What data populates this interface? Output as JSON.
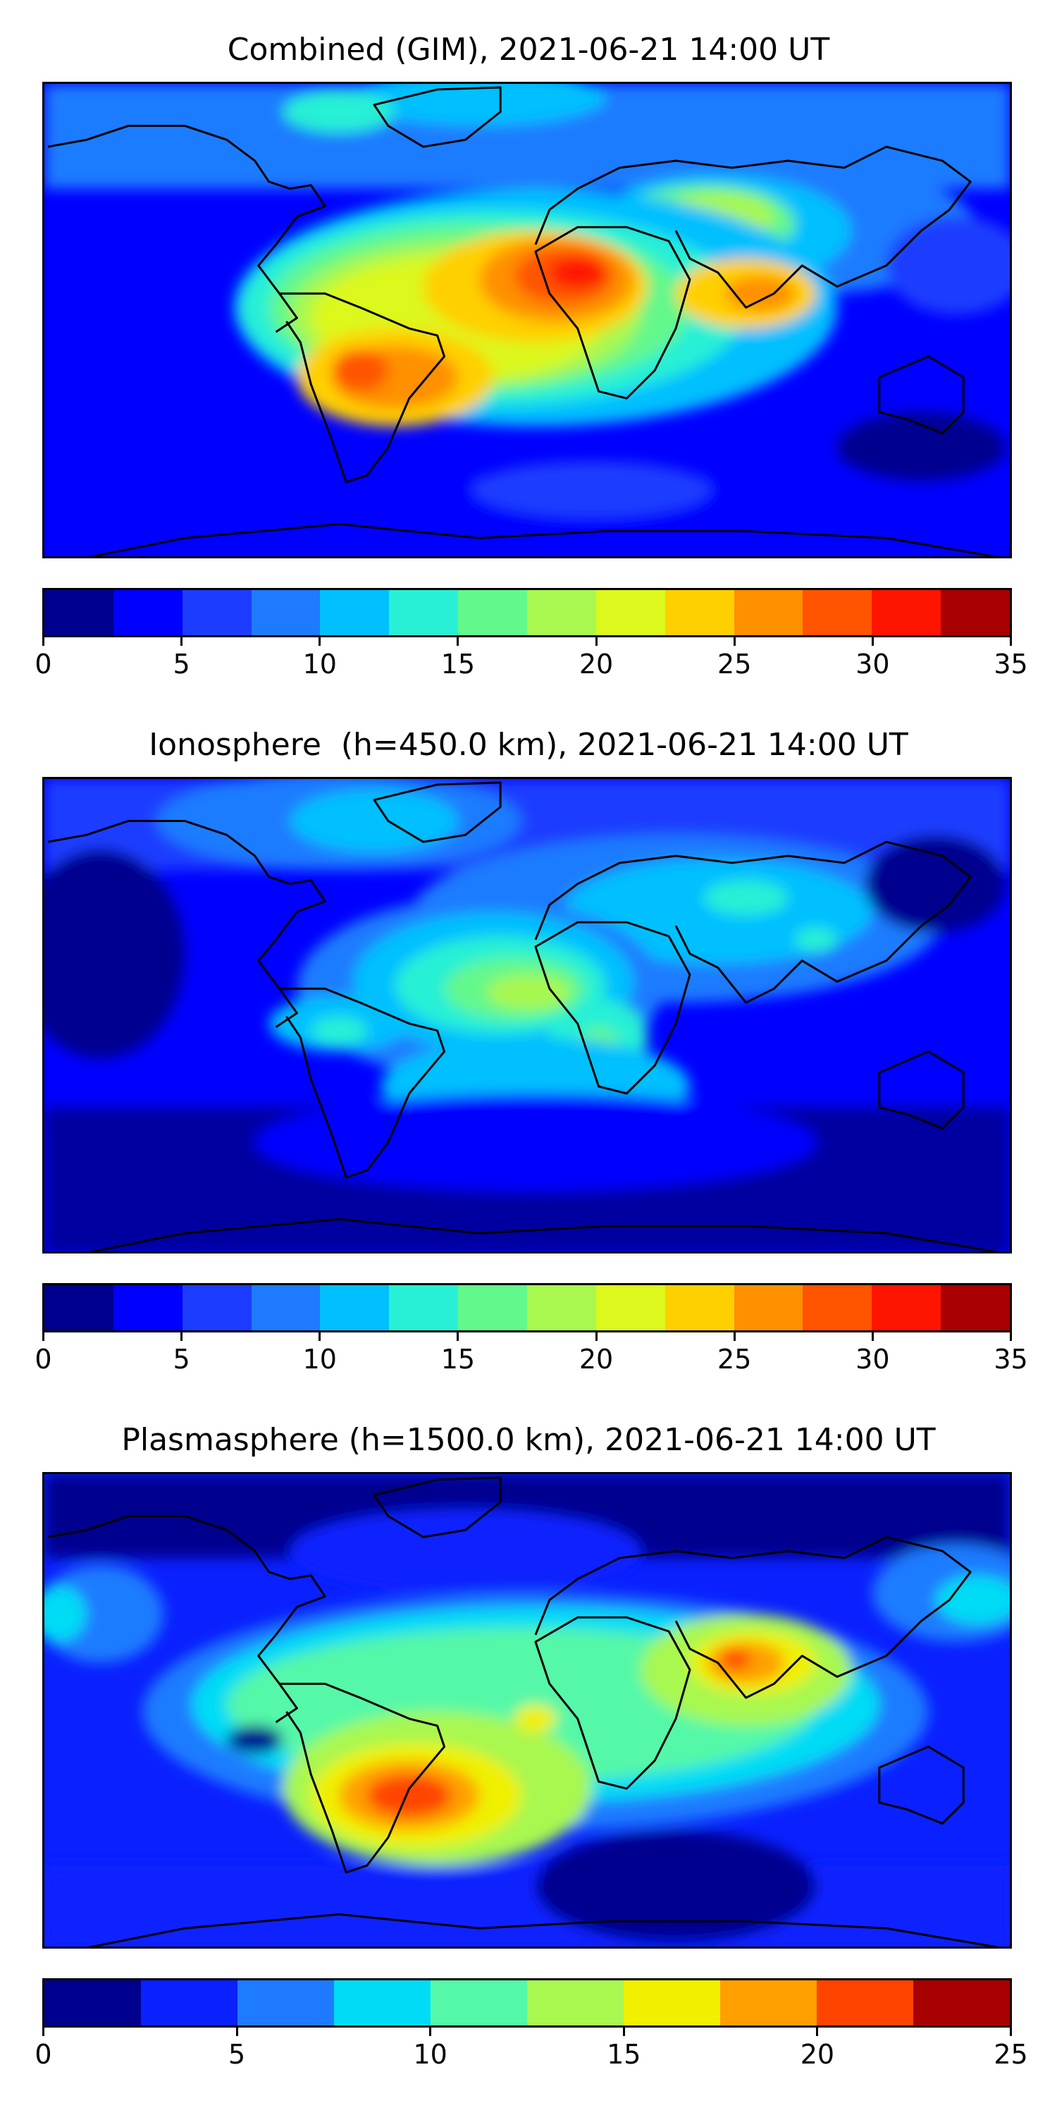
{
  "panels": [
    {
      "title": "Combined (GIM), 2021-06-21 14:00 UT",
      "colorbar": {
        "colors": [
          "#00008f",
          "#0000ff",
          "#1c3cff",
          "#1e7bff",
          "#00c0ff",
          "#28f0d5",
          "#63f88c",
          "#a8f850",
          "#dcf81c",
          "#ffd000",
          "#ff9000",
          "#ff5400",
          "#ff1400",
          "#a80000"
        ],
        "ticks": [
          "0",
          "5",
          "10",
          "15",
          "20",
          "25",
          "30",
          "35"
        ]
      }
    },
    {
      "title": "Ionosphere  (h=450.0 km), 2021-06-21 14:00 UT",
      "colorbar": {
        "colors": [
          "#00008f",
          "#0000ff",
          "#1c3cff",
          "#1e7bff",
          "#00c0ff",
          "#28f0d5",
          "#63f88c",
          "#a8f850",
          "#dcf81c",
          "#ffd000",
          "#ff9000",
          "#ff5400",
          "#ff1400",
          "#a80000"
        ],
        "ticks": [
          "0",
          "5",
          "10",
          "15",
          "20",
          "25",
          "30",
          "35"
        ]
      }
    },
    {
      "title": "Plasmasphere (h=1500.0 km), 2021-06-21 14:00 UT",
      "colorbar": {
        "colors": [
          "#00008f",
          "#0a20ff",
          "#1e7bff",
          "#00dcf5",
          "#55f8a8",
          "#a8f850",
          "#f0f000",
          "#ffa000",
          "#ff4400",
          "#a80000"
        ],
        "ticks": [
          "0",
          "5",
          "10",
          "15",
          "20",
          "25"
        ]
      }
    }
  ]
}
